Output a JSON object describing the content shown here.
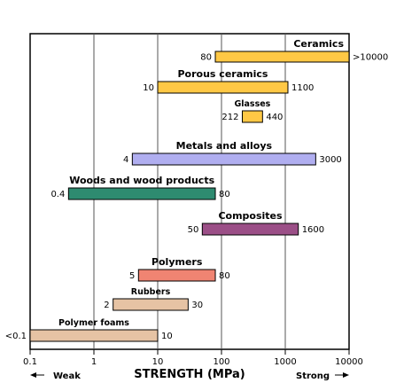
{
  "chart_data": {
    "type": "bar",
    "orientation": "horizontal-range",
    "xscale": "log",
    "xlim": [
      0.1,
      10000
    ],
    "xticks": [
      "0.1",
      "1",
      "10",
      "100",
      "1000",
      "10000"
    ],
    "xlabel": "STRENGTH (MPa)",
    "weak_label": "Weak",
    "strong_label": "Strong",
    "grid": true,
    "categories": [
      {
        "name": "Ceramics",
        "low": 80,
        "high": 10000,
        "low_label": "80",
        "high_label": ">10000",
        "color": "#FFC845"
      },
      {
        "name": "Porous ceramics",
        "low": 10,
        "high": 1100,
        "low_label": "10",
        "high_label": "1100",
        "color": "#FFC845"
      },
      {
        "name": "Glasses",
        "low": 212,
        "high": 440,
        "low_label": "212",
        "high_label": "440",
        "color": "#FFC845"
      },
      {
        "name": "Metals and alloys",
        "low": 4,
        "high": 3000,
        "low_label": "4",
        "high_label": "3000",
        "color": "#B0AEF0"
      },
      {
        "name": "Woods and wood products",
        "low": 0.4,
        "high": 80,
        "low_label": "0.4",
        "high_label": "80",
        "color": "#2E8B70"
      },
      {
        "name": "Composites",
        "low": 50,
        "high": 1600,
        "low_label": "50",
        "high_label": "1600",
        "color": "#9B4F87"
      },
      {
        "name": "Polymers",
        "low": 5,
        "high": 80,
        "low_label": "5",
        "high_label": "80",
        "color": "#F08472"
      },
      {
        "name": "Rubbers",
        "low": 2,
        "high": 30,
        "low_label": "2",
        "high_label": "30",
        "color": "#E6C3A4"
      },
      {
        "name": "Polymer foams",
        "low": 0.1,
        "high": 10,
        "low_label": "<0.1",
        "high_label": "10",
        "color": "#E6C3A4"
      }
    ]
  }
}
